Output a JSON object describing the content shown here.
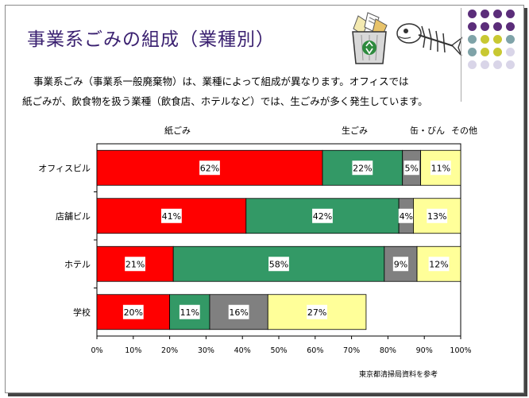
{
  "title": "事業系ごみの組成（業種別）",
  "description": {
    "line1": "事業系ごみ（事業系一般廃棄物）は、業種によって組成が異なります。オフィスでは",
    "line2": "紙ごみが、飲食物を扱う業種（飲食店、ホテルなど）では、生ごみが多く発生しています。"
  },
  "source": "東京都清掃局資料を参考",
  "icons": {
    "trash": "recycle-bin-icon",
    "fish": "fish-bone-icon"
  },
  "decoration_colors": [
    "#5b2d7a",
    "#7fa3a8",
    "#c8c832",
    "#d9d5e8"
  ],
  "chart_data": {
    "type": "bar",
    "orientation": "horizontal",
    "stacked": true,
    "categories": [
      "オフィスビル",
      "店舗ビル",
      "ホテル",
      "学校"
    ],
    "series": [
      {
        "name": "紙ごみ",
        "color": "#ff0000",
        "values": [
          62,
          41,
          21,
          20
        ]
      },
      {
        "name": "生ごみ",
        "color": "#339966",
        "values": [
          22,
          42,
          58,
          11
        ]
      },
      {
        "name": "缶・びん",
        "color": "#808080",
        "values": [
          5,
          4,
          9,
          16
        ]
      },
      {
        "name": "その他",
        "color": "#ffff99",
        "values": [
          11,
          13,
          12,
          27
        ]
      }
    ],
    "data_labels": [
      [
        "62%",
        "22%",
        "5%",
        "11%"
      ],
      [
        "41%",
        "42%",
        "4%",
        "13%"
      ],
      [
        "21%",
        "58%",
        "9%",
        "12%"
      ],
      [
        "20%",
        "11%",
        "16%",
        "27%"
      ]
    ],
    "xlim": [
      0,
      100
    ],
    "xticks": [
      "0%",
      "10%",
      "20%",
      "30%",
      "40%",
      "50%",
      "60%",
      "70%",
      "80%",
      "90%",
      "100%"
    ],
    "legend_position": "top",
    "grid": false
  }
}
